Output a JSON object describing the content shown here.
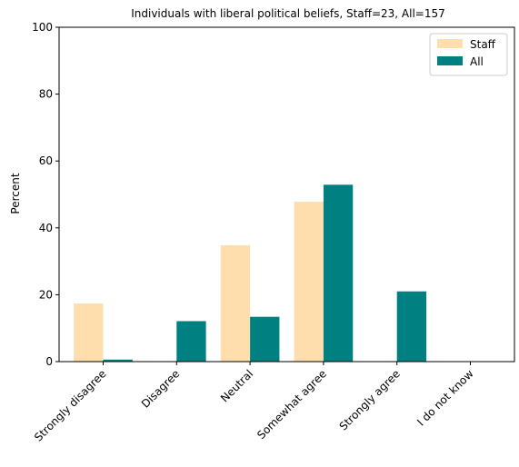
{
  "chart_data": {
    "type": "bar",
    "title": "Individuals with liberal political beliefs, Staff=23, All=157",
    "xlabel": "",
    "ylabel": "Percent",
    "ylim": [
      0,
      100
    ],
    "yticks": [
      0,
      20,
      40,
      60,
      80,
      100
    ],
    "categories": [
      "Strongly disagree",
      "Disagree",
      "Neutral",
      "Somewhat agree",
      "Strongly agree",
      "I do not know"
    ],
    "series": [
      {
        "name": "Staff",
        "color": "#ffdead",
        "values": [
          17.4,
          0,
          34.8,
          47.8,
          0,
          0
        ]
      },
      {
        "name": "All",
        "color": "#008080",
        "values": [
          0.6,
          12.1,
          13.4,
          52.9,
          21.0,
          0
        ]
      }
    ],
    "legend_position": "top-right",
    "grid": false
  }
}
